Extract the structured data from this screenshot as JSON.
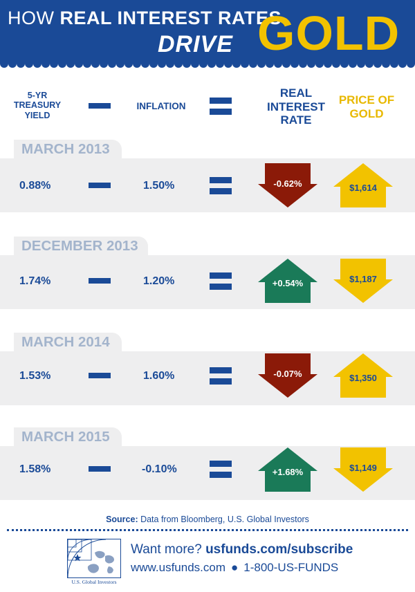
{
  "title": {
    "line1_light": "HOW ",
    "line1_bold": "REAL INTEREST RATES",
    "line2": "DRIVE",
    "gold": "GOLD"
  },
  "columns": {
    "yield": "5-YR TREASURY YIELD",
    "inflation": "INFLATION",
    "real_rate": "REAL INTEREST RATE",
    "gold_price": "PRICE OF GOLD"
  },
  "colors": {
    "navy": "#1a4a97",
    "gold": "#f2c200",
    "real_down": "#8b1a08",
    "real_up": "#1a7a58",
    "gray_band": "#eeeeef",
    "tab_text": "#a3b4cc"
  },
  "rows": [
    {
      "period": "MARCH 2013",
      "yield": "0.88%",
      "inflation": "1.50%",
      "real_rate": "-0.62%",
      "real_direction": "down",
      "gold_price": "$1,614",
      "gold_direction": "up"
    },
    {
      "period": "DECEMBER 2013",
      "yield": "1.74%",
      "inflation": "1.20%",
      "real_rate": "+0.54%",
      "real_direction": "up",
      "gold_price": "$1,187",
      "gold_direction": "down"
    },
    {
      "period": "MARCH 2014",
      "yield": "1.53%",
      "inflation": "1.60%",
      "real_rate": "-0.07%",
      "real_direction": "down",
      "gold_price": "$1,350",
      "gold_direction": "up"
    },
    {
      "period": "MARCH 2015",
      "yield": "1.58%",
      "inflation": "-0.10%",
      "real_rate": "+1.68%",
      "real_direction": "up",
      "gold_price": "$1,149",
      "gold_direction": "down"
    }
  ],
  "footer": {
    "source_label": "Source:",
    "source_text": " Data from Bloomberg, U.S. Global Investors",
    "logo_text": "U.S. Global Investors",
    "want_more": "Want more? ",
    "subscribe": "usfunds.com/subscribe",
    "website": "www.usfunds.com",
    "bullet": "●",
    "phone": "1-800-US-FUNDS"
  }
}
